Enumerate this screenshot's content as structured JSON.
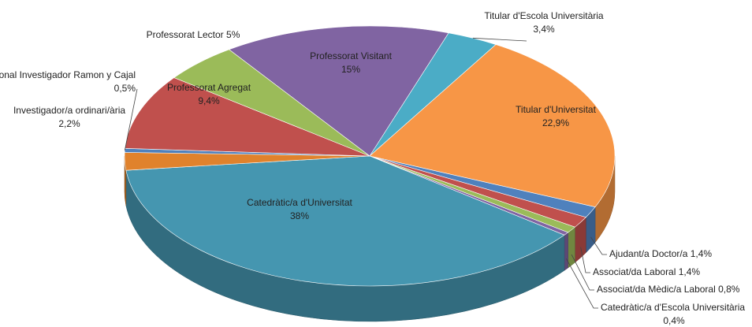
{
  "chart_data": {
    "type": "pie",
    "categories": [
      "Professorat Visitant",
      "Titular d'Escola Universitària",
      "Titular d'Universitat",
      "Ajudant/a Doctor/a",
      "Associat/da Laboral",
      "Associat/da Mèdic/a Laboral",
      "Catedràtic/a d'Escola Universitària",
      "Catedràtic/a d'Universitat",
      "Investigador/a ordinari/ària",
      "Personal Investigador Ramon y Cajal",
      "Professorat Agregat",
      "Professorat Lector"
    ],
    "values": [
      15,
      3.4,
      22.9,
      1.4,
      1.4,
      0.8,
      0.4,
      38,
      2.2,
      0.5,
      9.4,
      5
    ],
    "value_labels": [
      "15%",
      "3,4%",
      "22,9%",
      "1,4%",
      "1,4%",
      "0,8%",
      "0,4%",
      "38%",
      "2,2%",
      "0,5%",
      "9,4%",
      "5%"
    ],
    "colors": [
      "#8064a2",
      "#4bacc6",
      "#f79646",
      "#4f81bd",
      "#c0504d",
      "#9bbb59",
      "#8064a2",
      "#4596b0",
      "#e0822c",
      "#4f81bd",
      "#c0504d",
      "#9bbb59"
    ]
  }
}
